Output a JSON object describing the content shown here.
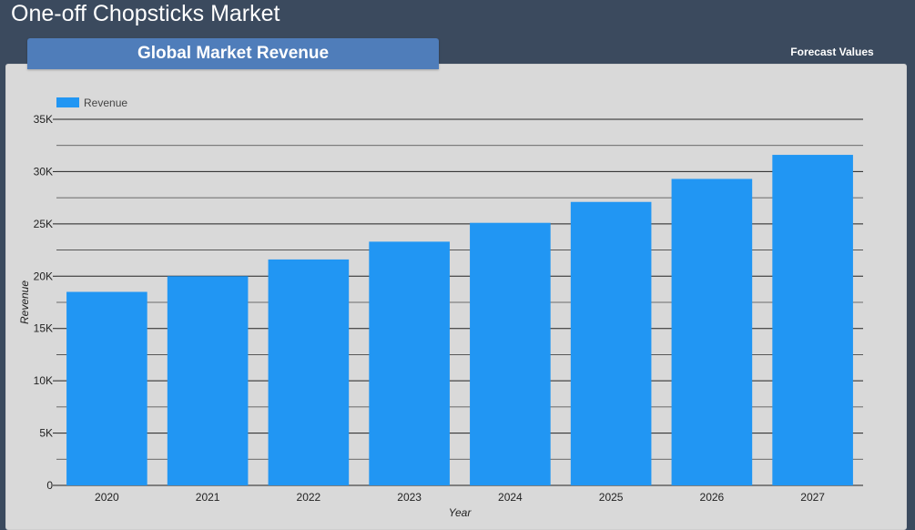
{
  "header": {
    "title": "One-off Chopsticks Market"
  },
  "tabs": [
    {
      "label": "Global Market Revenue",
      "active": true
    },
    {
      "label": "Forecast Values",
      "active": false
    }
  ],
  "colors": {
    "bar": "#2196f3",
    "background": "#3b4a5e",
    "panel": "#d9d9d9",
    "tab": "#4f7dba"
  },
  "chart_data": {
    "type": "bar",
    "categories": [
      "2020",
      "2021",
      "2022",
      "2023",
      "2024",
      "2025",
      "2026",
      "2027"
    ],
    "series": [
      {
        "name": "Revenue",
        "values": [
          18500,
          20000,
          21600,
          23300,
          25100,
          27100,
          29300,
          31600
        ]
      }
    ],
    "xlabel": "Year",
    "ylabel": "Revenue",
    "ylim": [
      0,
      35000
    ],
    "yticks": [
      0,
      5000,
      10000,
      15000,
      20000,
      25000,
      30000,
      35000
    ],
    "ytick_labels": [
      "0",
      "5K",
      "10K",
      "15K",
      "20K",
      "25K",
      "30K",
      "35K"
    ],
    "minor_gridlines": true,
    "legend": {
      "position": "top-left",
      "entries": [
        "Revenue"
      ]
    }
  }
}
